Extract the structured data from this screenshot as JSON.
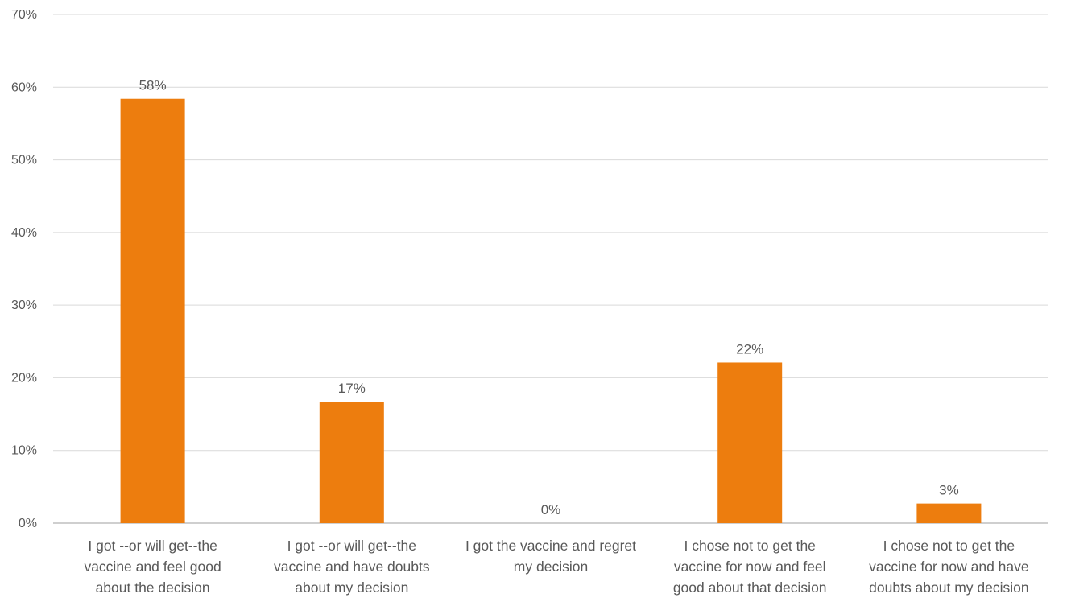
{
  "chart_data": {
    "type": "bar",
    "title": "",
    "xlabel": "",
    "ylabel": "",
    "ylim": [
      0,
      70
    ],
    "yticks": [
      "0%",
      "10%",
      "20%",
      "30%",
      "40%",
      "50%",
      "60%",
      "70%"
    ],
    "y_tick_values": [
      0,
      10,
      20,
      30,
      40,
      50,
      60,
      70
    ],
    "grid": true,
    "legend": "none",
    "bar_color": "#ED7D0E",
    "categories": [
      [
        "I got --or will get--the",
        "vaccine and feel good",
        "about the decision"
      ],
      [
        "I got --or will get--the",
        "vaccine and have doubts",
        "about my decision"
      ],
      [
        "I got the vaccine and regret",
        "my decision"
      ],
      [
        "I chose not to get the",
        "vaccine for now and feel",
        "good about that decision"
      ],
      [
        "I chose not to get the",
        "vaccine for now and have",
        "doubts about my decision"
      ]
    ],
    "values": [
      58.4,
      16.7,
      0,
      22.1,
      2.7
    ],
    "data_labels": [
      "58%",
      "17%",
      "0%",
      "22%",
      "3%"
    ]
  }
}
